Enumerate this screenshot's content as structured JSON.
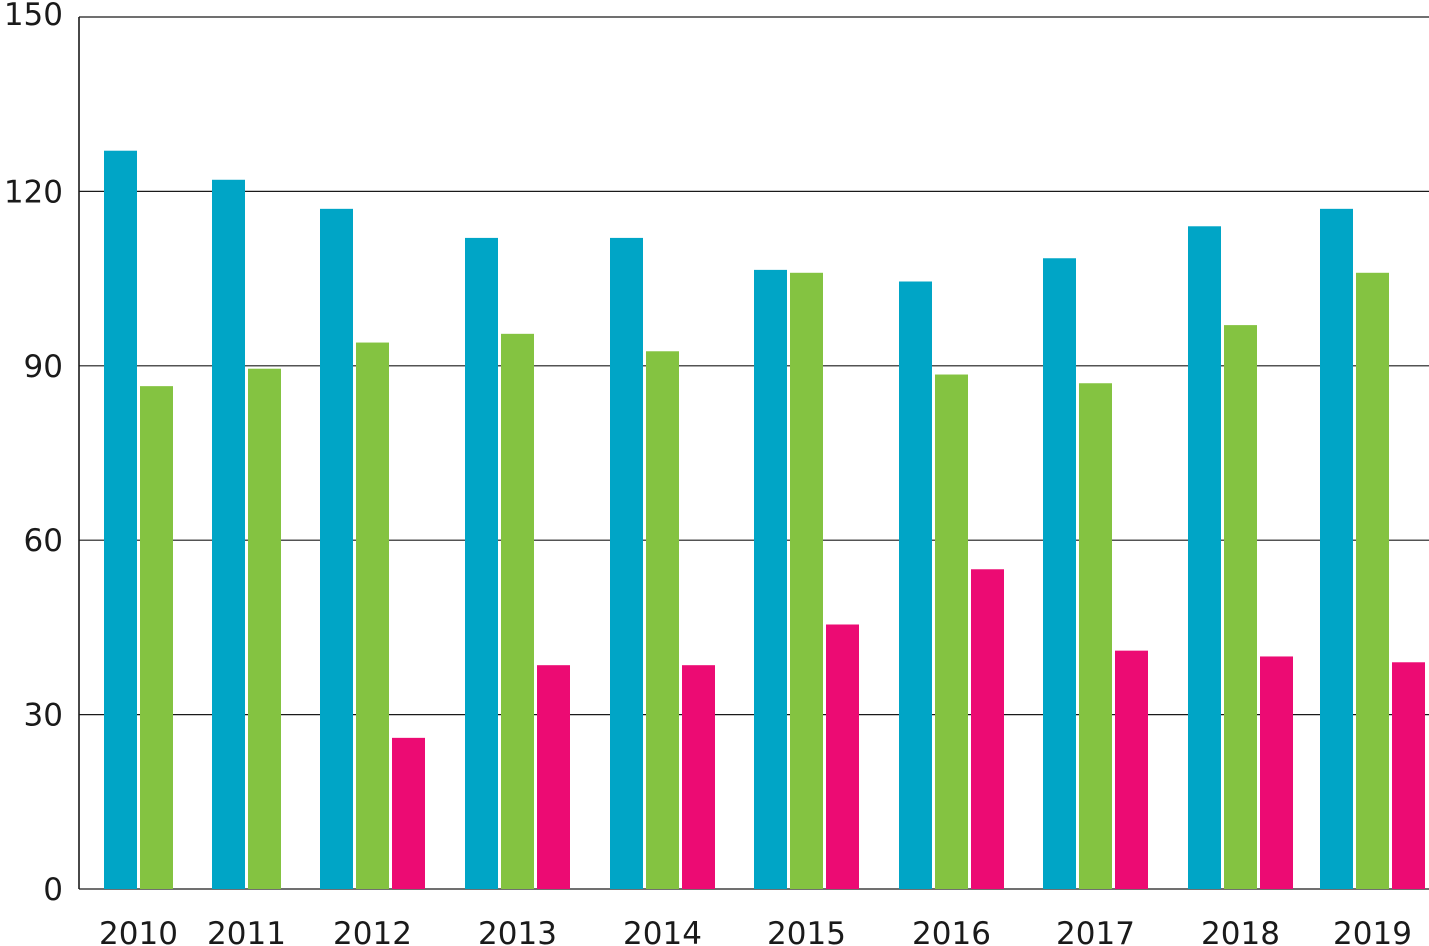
{
  "chart_data": {
    "type": "bar",
    "categories": [
      "2010",
      "2011",
      "2012",
      "2013",
      "2014",
      "2015",
      "2016",
      "2017",
      "2018",
      "2019"
    ],
    "series": [
      {
        "color": "#00a5c6",
        "values": [
          127,
          122,
          117,
          112,
          112,
          106.5,
          104.5,
          108.5,
          114,
          117
        ]
      },
      {
        "color": "#84c341",
        "values": [
          86.5,
          89.5,
          94,
          95.5,
          92.5,
          106,
          88.5,
          87,
          97,
          106
        ]
      },
      {
        "color": "#ec0b73",
        "values": [
          null,
          null,
          26,
          38.5,
          38.5,
          45.5,
          55,
          41,
          40,
          39
        ]
      }
    ],
    "y_ticks": [
      0,
      30,
      60,
      90,
      120,
      150
    ],
    "ylim": [
      0,
      150
    ],
    "grid": true,
    "legend": "none"
  }
}
